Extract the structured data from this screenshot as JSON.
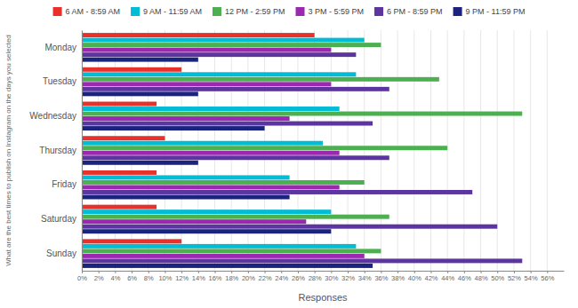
{
  "chart_data": {
    "type": "bar",
    "orientation": "horizontal",
    "categories": [
      "Sunday",
      "Saturday",
      "Friday",
      "Thursday",
      "Wednesday",
      "Tuesday",
      "Monday"
    ],
    "series": [
      {
        "name": "6 AM - 8:59 AM",
        "color": "#e8312a",
        "values": [
          12,
          9,
          9,
          10,
          9,
          12,
          28
        ]
      },
      {
        "name": "9 AM - 11:59 AM",
        "color": "#00bcd4",
        "values": [
          33,
          30,
          25,
          29,
          31,
          33,
          34
        ]
      },
      {
        "name": "12 PM - 2:59 PM",
        "color": "#4caf50",
        "values": [
          36,
          37,
          34,
          44,
          53,
          43,
          36
        ]
      },
      {
        "name": "3 PM - 5:59 PM",
        "color": "#9c27b0",
        "values": [
          34,
          27,
          31,
          31,
          25,
          30,
          30
        ]
      },
      {
        "name": "6 PM - 8:59 PM",
        "color": "#5c35a0",
        "values": [
          53,
          50,
          47,
          37,
          35,
          37,
          33
        ]
      },
      {
        "name": "9 PM - 11:59 PM",
        "color": "#1a237e",
        "values": [
          35,
          30,
          25,
          14,
          22,
          14,
          14
        ]
      }
    ],
    "xlabel": "Responses",
    "ylabel": "What are the best times to publish on Instagram on the days you selected",
    "xlim": [
      0,
      58
    ],
    "xticks": [
      {
        "value": 0,
        "label": "0%"
      },
      {
        "value": 2,
        "label": "2%"
      },
      {
        "value": 4,
        "label": "4%"
      },
      {
        "value": 6,
        "label": "6%"
      },
      {
        "value": 8,
        "label": "8%"
      },
      {
        "value": 10,
        "label": "10%"
      },
      {
        "value": 12,
        "label": "12%"
      },
      {
        "value": 14,
        "label": "14%"
      },
      {
        "value": 16,
        "label": "16%"
      },
      {
        "value": 18,
        "label": "18%"
      },
      {
        "value": 20,
        "label": "20%"
      },
      {
        "value": 22,
        "label": "22%"
      },
      {
        "value": 24,
        "label": "24%"
      },
      {
        "value": 26,
        "label": "26%"
      },
      {
        "value": 28,
        "label": "28%"
      },
      {
        "value": 30,
        "label": "30%"
      },
      {
        "value": 32,
        "label": "32%"
      },
      {
        "value": 34,
        "label": "34%"
      },
      {
        "value": 36,
        "label": "36%"
      },
      {
        "value": 38,
        "label": "38%"
      },
      {
        "value": 40,
        "label": "40%"
      },
      {
        "value": 42,
        "label": "42%"
      },
      {
        "value": 44,
        "label": "44%"
      },
      {
        "value": 46,
        "label": "46%"
      },
      {
        "value": 48,
        "label": "48%"
      },
      {
        "value": 50,
        "label": "50%"
      },
      {
        "value": 52,
        "label": "52%"
      },
      {
        "value": 54,
        "label": "54%"
      },
      {
        "value": 56,
        "label": "56%"
      }
    ],
    "grid": true,
    "legend": "top"
  }
}
